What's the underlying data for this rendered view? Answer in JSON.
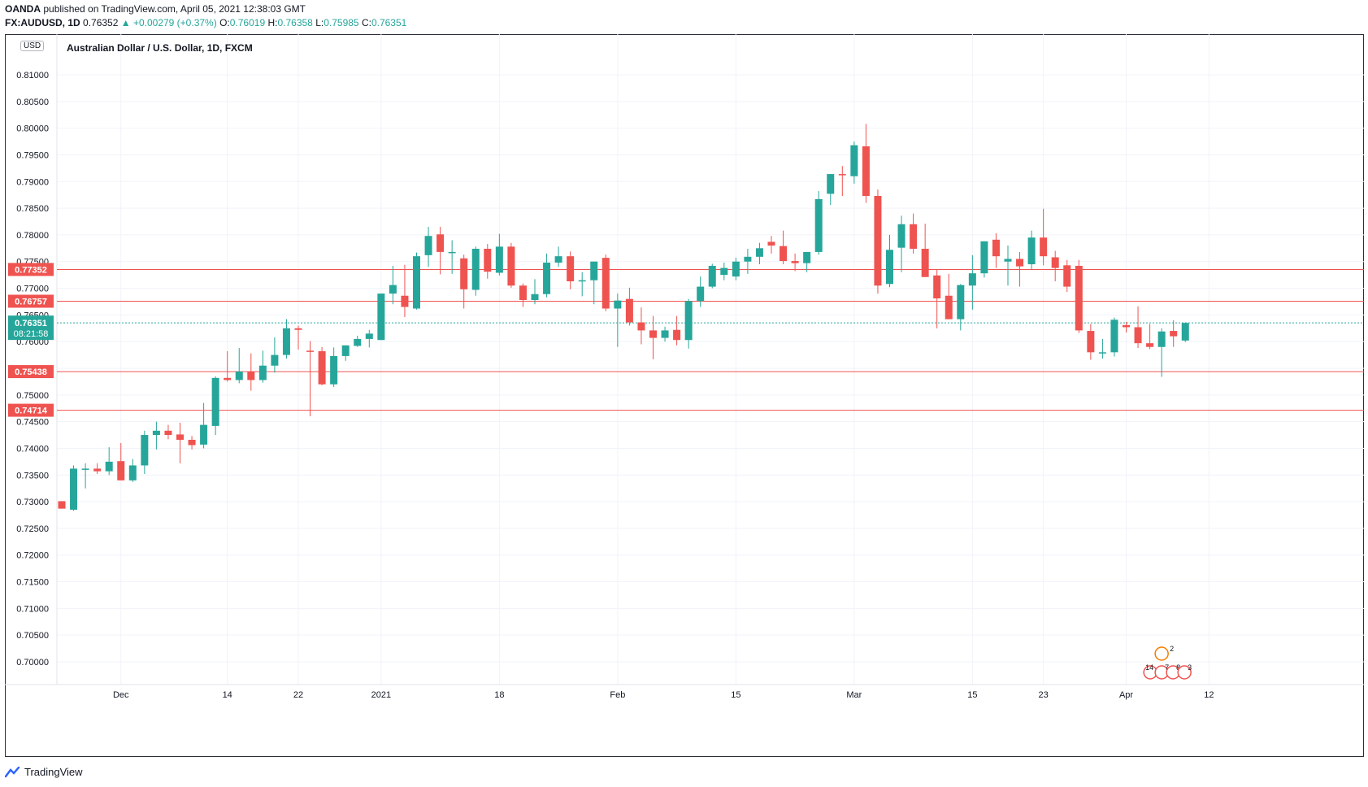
{
  "header": {
    "publisher": "OANDA",
    "published_text": "published on TradingView.com, April 05, 2021 12:38:03 GMT"
  },
  "ohlc": {
    "symbol": "FX:AUDUSD, 1D",
    "last": "0.76352",
    "change": "▲ +0.00279 (+0.37%)",
    "o_label": "O:",
    "o": "0.76019",
    "h_label": "H:",
    "h": "0.76358",
    "l_label": "L:",
    "l": "0.75985",
    "c_label": "C:",
    "c": "0.76351"
  },
  "chart_title": "Australian Dollar / U.S. Dollar, 1D, FXCM",
  "currency_badge": "USD",
  "footer": {
    "brand": "TradingView"
  },
  "colors": {
    "up": "#26a69a",
    "down": "#ef5350",
    "level_line": "#ef5350",
    "grid": "#f0f3fa",
    "text": "#131722"
  },
  "icons": [
    "tradingview-logo-icon",
    "event-flag-icons"
  ],
  "event_markers": {
    "top_count": "2",
    "bottom_counts": [
      "14",
      "7",
      "8",
      "3"
    ]
  },
  "chart_data": {
    "type": "candlestick",
    "title": "Australian Dollar / U.S. Dollar, 1D, FXCM",
    "ylabel": "USD",
    "ylim": [
      0.695,
      0.816
    ],
    "y_ticks": [
      "0.70000",
      "0.70500",
      "0.71000",
      "0.71500",
      "0.72000",
      "0.72500",
      "0.73000",
      "0.73500",
      "0.74000",
      "0.74500",
      "0.75000",
      "0.75500",
      "0.76000",
      "0.76500",
      "0.77000",
      "0.77500",
      "0.78000",
      "0.78500",
      "0.79000",
      "0.79500",
      "0.80000",
      "0.80500",
      "0.81000"
    ],
    "x_ticks": [
      {
        "label": "Dec",
        "index": 5
      },
      {
        "label": "14",
        "index": 14
      },
      {
        "label": "22",
        "index": 20
      },
      {
        "label": "2021",
        "index": 27
      },
      {
        "label": "18",
        "index": 37
      },
      {
        "label": "Feb",
        "index": 47
      },
      {
        "label": "15",
        "index": 57
      },
      {
        "label": "Mar",
        "index": 67
      },
      {
        "label": "15",
        "index": 77
      },
      {
        "label": "23",
        "index": 83
      },
      {
        "label": "Apr",
        "index": 90
      },
      {
        "label": "12",
        "index": 97
      }
    ],
    "horizontal_levels": [
      "0.77352",
      "0.76757",
      "0.75438",
      "0.74714"
    ],
    "current_price": {
      "value": "0.76351",
      "countdown": "08:21:58"
    },
    "candles": [
      {
        "o": 0.7301,
        "h": 0.7301,
        "l": 0.7287,
        "c": 0.7287
      },
      {
        "o": 0.7285,
        "h": 0.7368,
        "l": 0.7283,
        "c": 0.7362
      },
      {
        "o": 0.7362,
        "h": 0.7372,
        "l": 0.7325,
        "c": 0.7362
      },
      {
        "o": 0.7362,
        "h": 0.7372,
        "l": 0.7352,
        "c": 0.7357
      },
      {
        "o": 0.7357,
        "h": 0.7402,
        "l": 0.735,
        "c": 0.7375
      },
      {
        "o": 0.7376,
        "h": 0.741,
        "l": 0.734,
        "c": 0.734
      },
      {
        "o": 0.734,
        "h": 0.738,
        "l": 0.7337,
        "c": 0.7368
      },
      {
        "o": 0.7368,
        "h": 0.7433,
        "l": 0.7352,
        "c": 0.7425
      },
      {
        "o": 0.7425,
        "h": 0.745,
        "l": 0.7398,
        "c": 0.7433
      },
      {
        "o": 0.7433,
        "h": 0.7444,
        "l": 0.7417,
        "c": 0.7425
      },
      {
        "o": 0.7426,
        "h": 0.7448,
        "l": 0.7372,
        "c": 0.7416
      },
      {
        "o": 0.7416,
        "h": 0.7423,
        "l": 0.7398,
        "c": 0.7406
      },
      {
        "o": 0.7407,
        "h": 0.7485,
        "l": 0.74,
        "c": 0.7444
      },
      {
        "o": 0.7442,
        "h": 0.7535,
        "l": 0.7425,
        "c": 0.7532
      },
      {
        "o": 0.7532,
        "h": 0.7582,
        "l": 0.7525,
        "c": 0.7528
      },
      {
        "o": 0.7528,
        "h": 0.7588,
        "l": 0.7522,
        "c": 0.7544
      },
      {
        "o": 0.7544,
        "h": 0.7578,
        "l": 0.7508,
        "c": 0.7528
      },
      {
        "o": 0.7528,
        "h": 0.7583,
        "l": 0.7523,
        "c": 0.7555
      },
      {
        "o": 0.7555,
        "h": 0.7608,
        "l": 0.7542,
        "c": 0.7575
      },
      {
        "o": 0.7575,
        "h": 0.7642,
        "l": 0.7568,
        "c": 0.7625
      },
      {
        "o": 0.7625,
        "h": 0.763,
        "l": 0.7585,
        "c": 0.7622
      },
      {
        "o": 0.7583,
        "h": 0.7601,
        "l": 0.746,
        "c": 0.7582
      },
      {
        "o": 0.7582,
        "h": 0.759,
        "l": 0.7518,
        "c": 0.752
      },
      {
        "o": 0.752,
        "h": 0.7589,
        "l": 0.7515,
        "c": 0.7573
      },
      {
        "o": 0.7573,
        "h": 0.7593,
        "l": 0.7564,
        "c": 0.7593
      },
      {
        "o": 0.7592,
        "h": 0.7611,
        "l": 0.759,
        "c": 0.7605
      },
      {
        "o": 0.7605,
        "h": 0.7622,
        "l": 0.7589,
        "c": 0.7615
      },
      {
        "o": 0.7603,
        "h": 0.768,
        "l": 0.7603,
        "c": 0.769
      },
      {
        "o": 0.769,
        "h": 0.7742,
        "l": 0.767,
        "c": 0.7706
      },
      {
        "o": 0.7686,
        "h": 0.7744,
        "l": 0.7646,
        "c": 0.7665
      },
      {
        "o": 0.7662,
        "h": 0.7767,
        "l": 0.766,
        "c": 0.776
      },
      {
        "o": 0.7762,
        "h": 0.7815,
        "l": 0.774,
        "c": 0.7798
      },
      {
        "o": 0.7801,
        "h": 0.7815,
        "l": 0.7726,
        "c": 0.7768
      },
      {
        "o": 0.7768,
        "h": 0.779,
        "l": 0.7727,
        "c": 0.7768
      },
      {
        "o": 0.7756,
        "h": 0.7763,
        "l": 0.7662,
        "c": 0.7698
      },
      {
        "o": 0.7697,
        "h": 0.7778,
        "l": 0.7686,
        "c": 0.7774
      },
      {
        "o": 0.7774,
        "h": 0.7783,
        "l": 0.7718,
        "c": 0.7731
      },
      {
        "o": 0.7729,
        "h": 0.7802,
        "l": 0.7724,
        "c": 0.7778
      },
      {
        "o": 0.7778,
        "h": 0.7785,
        "l": 0.7701,
        "c": 0.7705
      },
      {
        "o": 0.7705,
        "h": 0.7709,
        "l": 0.7665,
        "c": 0.7678
      },
      {
        "o": 0.7678,
        "h": 0.7717,
        "l": 0.767,
        "c": 0.7689
      },
      {
        "o": 0.7689,
        "h": 0.7765,
        "l": 0.7683,
        "c": 0.7748
      },
      {
        "o": 0.7748,
        "h": 0.7778,
        "l": 0.774,
        "c": 0.776
      },
      {
        "o": 0.776,
        "h": 0.7769,
        "l": 0.7698,
        "c": 0.7713
      },
      {
        "o": 0.7714,
        "h": 0.773,
        "l": 0.7685,
        "c": 0.7715
      },
      {
        "o": 0.7715,
        "h": 0.7749,
        "l": 0.767,
        "c": 0.775
      },
      {
        "o": 0.7757,
        "h": 0.7763,
        "l": 0.7657,
        "c": 0.7662
      },
      {
        "o": 0.7662,
        "h": 0.769,
        "l": 0.759,
        "c": 0.7677
      },
      {
        "o": 0.768,
        "h": 0.7701,
        "l": 0.763,
        "c": 0.7636
      },
      {
        "o": 0.7636,
        "h": 0.7664,
        "l": 0.7595,
        "c": 0.7621
      },
      {
        "o": 0.7621,
        "h": 0.7648,
        "l": 0.7567,
        "c": 0.7607
      },
      {
        "o": 0.7607,
        "h": 0.7628,
        "l": 0.76,
        "c": 0.7621
      },
      {
        "o": 0.7622,
        "h": 0.7648,
        "l": 0.7593,
        "c": 0.7603
      },
      {
        "o": 0.7603,
        "h": 0.768,
        "l": 0.7587,
        "c": 0.7676
      },
      {
        "o": 0.7676,
        "h": 0.7722,
        "l": 0.7665,
        "c": 0.7703
      },
      {
        "o": 0.7703,
        "h": 0.7746,
        "l": 0.77,
        "c": 0.7742
      },
      {
        "o": 0.7725,
        "h": 0.7748,
        "l": 0.7715,
        "c": 0.7738
      },
      {
        "o": 0.7722,
        "h": 0.7757,
        "l": 0.7715,
        "c": 0.775
      },
      {
        "o": 0.775,
        "h": 0.7774,
        "l": 0.7727,
        "c": 0.7759
      },
      {
        "o": 0.7759,
        "h": 0.7785,
        "l": 0.7745,
        "c": 0.7775
      },
      {
        "o": 0.7787,
        "h": 0.7798,
        "l": 0.7765,
        "c": 0.778
      },
      {
        "o": 0.7779,
        "h": 0.7808,
        "l": 0.7745,
        "c": 0.7751
      },
      {
        "o": 0.7751,
        "h": 0.7765,
        "l": 0.7732,
        "c": 0.7747
      },
      {
        "o": 0.7747,
        "h": 0.7765,
        "l": 0.773,
        "c": 0.7768
      },
      {
        "o": 0.7768,
        "h": 0.7882,
        "l": 0.7763,
        "c": 0.7867
      },
      {
        "o": 0.7877,
        "h": 0.7913,
        "l": 0.7856,
        "c": 0.7914
      },
      {
        "o": 0.7914,
        "h": 0.7929,
        "l": 0.7873,
        "c": 0.7912
      },
      {
        "o": 0.791,
        "h": 0.7975,
        "l": 0.7896,
        "c": 0.7968
      },
      {
        "o": 0.7966,
        "h": 0.8008,
        "l": 0.786,
        "c": 0.7873
      },
      {
        "o": 0.7873,
        "h": 0.7885,
        "l": 0.769,
        "c": 0.7705
      },
      {
        "o": 0.7708,
        "h": 0.78,
        "l": 0.7702,
        "c": 0.7772
      },
      {
        "o": 0.7776,
        "h": 0.7836,
        "l": 0.773,
        "c": 0.782
      },
      {
        "o": 0.782,
        "h": 0.784,
        "l": 0.7765,
        "c": 0.7774
      },
      {
        "o": 0.7774,
        "h": 0.7821,
        "l": 0.773,
        "c": 0.7721
      },
      {
        "o": 0.7724,
        "h": 0.7735,
        "l": 0.7625,
        "c": 0.7681
      },
      {
        "o": 0.7686,
        "h": 0.7727,
        "l": 0.765,
        "c": 0.7642
      },
      {
        "o": 0.7642,
        "h": 0.7708,
        "l": 0.7621,
        "c": 0.7706
      },
      {
        "o": 0.7705,
        "h": 0.7762,
        "l": 0.766,
        "c": 0.7728
      },
      {
        "o": 0.7728,
        "h": 0.7788,
        "l": 0.772,
        "c": 0.7788
      },
      {
        "o": 0.7791,
        "h": 0.7803,
        "l": 0.7738,
        "c": 0.776
      },
      {
        "o": 0.775,
        "h": 0.778,
        "l": 0.7705,
        "c": 0.7755
      },
      {
        "o": 0.7755,
        "h": 0.7768,
        "l": 0.7703,
        "c": 0.7741
      },
      {
        "o": 0.7745,
        "h": 0.7808,
        "l": 0.7735,
        "c": 0.7795
      },
      {
        "o": 0.7795,
        "h": 0.7849,
        "l": 0.7743,
        "c": 0.776
      },
      {
        "o": 0.7758,
        "h": 0.777,
        "l": 0.7713,
        "c": 0.7738
      },
      {
        "o": 0.7743,
        "h": 0.7753,
        "l": 0.7693,
        "c": 0.7703
      },
      {
        "o": 0.7742,
        "h": 0.7753,
        "l": 0.7616,
        "c": 0.7621
      },
      {
        "o": 0.762,
        "h": 0.7633,
        "l": 0.7566,
        "c": 0.758
      },
      {
        "o": 0.758,
        "h": 0.7605,
        "l": 0.7568,
        "c": 0.758
      },
      {
        "o": 0.758,
        "h": 0.7645,
        "l": 0.7572,
        "c": 0.7641
      },
      {
        "o": 0.7631,
        "h": 0.7637,
        "l": 0.7617,
        "c": 0.7627
      },
      {
        "o": 0.7627,
        "h": 0.7666,
        "l": 0.7588,
        "c": 0.7597
      },
      {
        "o": 0.7597,
        "h": 0.7633,
        "l": 0.7586,
        "c": 0.759
      },
      {
        "o": 0.759,
        "h": 0.7625,
        "l": 0.7534,
        "c": 0.7619
      },
      {
        "o": 0.762,
        "h": 0.764,
        "l": 0.759,
        "c": 0.761
      },
      {
        "o": 0.7602,
        "h": 0.7636,
        "l": 0.7599,
        "c": 0.7635
      }
    ],
    "candle_dates_note": ""
  }
}
